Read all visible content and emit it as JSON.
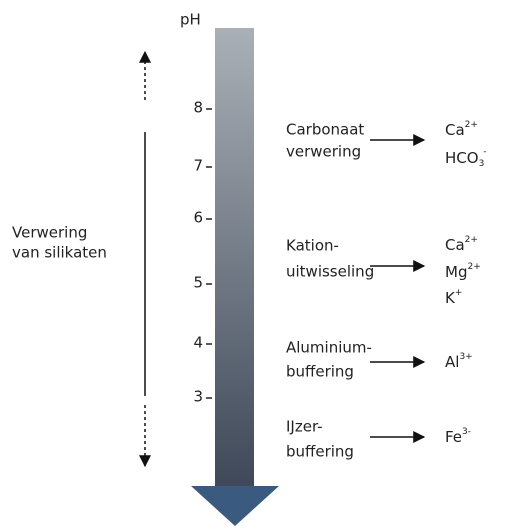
{
  "axis": {
    "label": "pH",
    "ticks": [
      "8",
      "7",
      "6",
      "5",
      "4",
      "3"
    ]
  },
  "left_label": [
    "Verwering",
    "van silikaten"
  ],
  "processes": [
    {
      "label": [
        "Carbonaat",
        "verwering"
      ],
      "products": [
        {
          "text": "Ca",
          "sup": "2+"
        },
        {
          "text": "HCO",
          "sub": "3",
          "sup": "-"
        }
      ]
    },
    {
      "label": [
        "Kation-",
        "uitwisseling"
      ],
      "products": [
        {
          "text": "Ca",
          "sup": "2+"
        },
        {
          "text": "Mg",
          "sup": "2+"
        },
        {
          "text": "K",
          "sup": "+"
        }
      ]
    },
    {
      "label": [
        "Aluminium-",
        "buffering"
      ],
      "products": [
        {
          "text": "Al",
          "sup": "3+"
        }
      ]
    },
    {
      "label": [
        "IJzer-",
        "buffering"
      ],
      "products": [
        {
          "text": "Fe",
          "sup": "3-"
        }
      ]
    }
  ]
}
